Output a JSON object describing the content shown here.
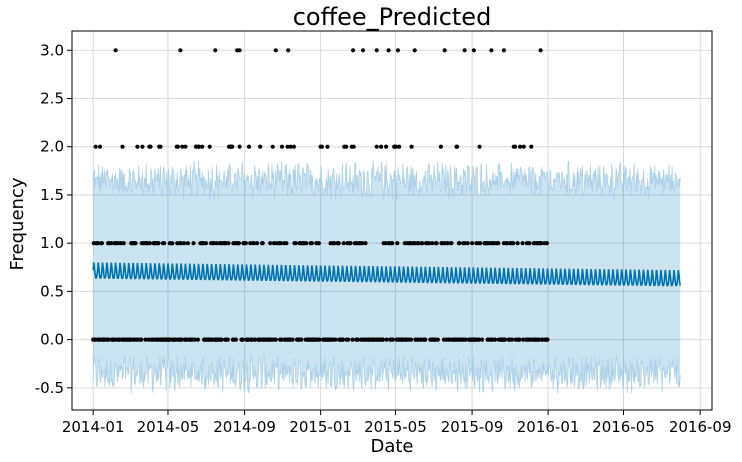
{
  "chart_data": {
    "type": "line",
    "title": "coffee_Predicted",
    "xlabel": "Date",
    "ylabel": "Frequency",
    "x_tick_labels": [
      "2014-01",
      "2014-05",
      "2014-09",
      "2015-01",
      "2015-05",
      "2015-09",
      "2016-01",
      "2016-05",
      "2016-09"
    ],
    "y_tick_labels": [
      "-0.5",
      "0.0",
      "0.5",
      "1.0",
      "1.5",
      "2.0",
      "2.5",
      "3.0"
    ],
    "xlim": [
      "2013-11-28",
      "2016-09-20"
    ],
    "ylim": [
      -0.73,
      3.2
    ],
    "grid": true,
    "history_range": [
      "2014-01-01",
      "2015-12-31"
    ],
    "forecast_range": [
      "2014-01-01",
      "2016-07-31"
    ],
    "series": [
      {
        "role": "uncertainty-interval",
        "lower_mean": -0.35,
        "upper_mean": 1.65,
        "color": "#0072B2",
        "opacity": 0.2
      },
      {
        "role": "forecast",
        "trend_start": 0.7,
        "trend_end": 0.62,
        "weekly_amplitude": 0.15,
        "color": "#0072B2"
      },
      {
        "role": "observed",
        "color": "#000000",
        "three_dates": [
          "2014-02-06",
          "2014-05-21",
          "2014-07-16",
          "2014-08-20",
          "2014-08-24",
          "2014-10-21",
          "2014-11-10",
          "2015-02-22",
          "2015-03-10",
          "2015-04-01",
          "2015-04-20",
          "2015-05-05",
          "2015-06-01",
          "2015-07-19",
          "2015-08-20",
          "2015-09-04",
          "2015-10-02",
          "2015-10-22",
          "2015-12-20"
        ],
        "value_levels": [
          0,
          1,
          2,
          3
        ]
      }
    ]
  }
}
